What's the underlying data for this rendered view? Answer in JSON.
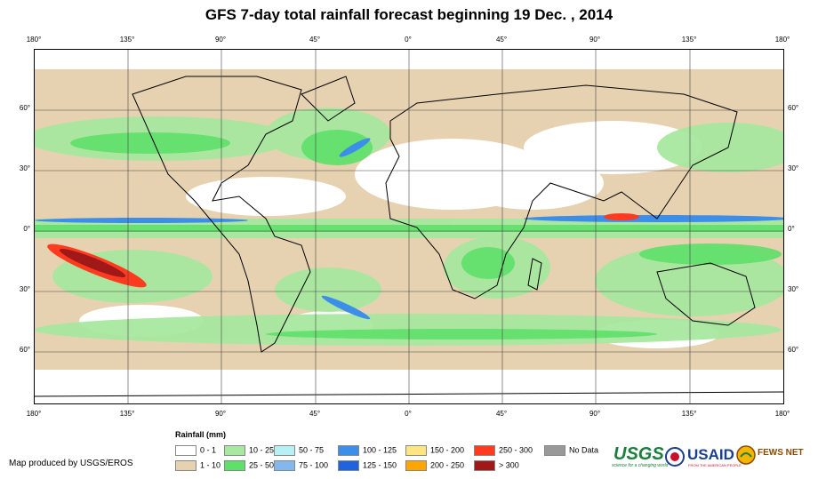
{
  "title": "GFS 7-day total rainfall forecast beginning 19 Dec. , 2014",
  "map": {
    "lon_labels": [
      "180°",
      "135°",
      "90°",
      "45°",
      "0°",
      "45°",
      "90°",
      "135°",
      "180°"
    ],
    "lat_labels": [
      "60°",
      "30°",
      "0°",
      "30°",
      "60°"
    ],
    "background_colors": {
      "dry": "#d9c3a3",
      "light": "#ffffff",
      "moderate": "#a8e8a0",
      "heavy": "#5fe06a",
      "intense": "#3d78d8",
      "extreme": "#b22222",
      "land_outline": "#000000"
    }
  },
  "legend": {
    "title": "Rainfall (mm)",
    "items": [
      {
        "label": "0 - 1",
        "color": "#ffffff"
      },
      {
        "label": "1 - 10",
        "color": "#e6d2b0"
      },
      {
        "label": "10 - 25",
        "color": "#a8e8a0"
      },
      {
        "label": "25 - 50",
        "color": "#5fe06a"
      },
      {
        "label": "50 - 75",
        "color": "#b7f0f5"
      },
      {
        "label": "75 - 100",
        "color": "#82b8ee"
      },
      {
        "label": "100 - 125",
        "color": "#3d8ee8"
      },
      {
        "label": "125 - 150",
        "color": "#1f63e0"
      },
      {
        "label": "150 - 200",
        "color": "#ffe680"
      },
      {
        "label": "200 - 250",
        "color": "#ffa500"
      },
      {
        "label": "250 - 300",
        "color": "#ff3b1f"
      },
      {
        "label": "> 300",
        "color": "#a01818"
      },
      {
        "label": "No Data",
        "color": "#999999"
      }
    ]
  },
  "credit": "Map produced by USGS/EROS",
  "logos": {
    "usgs": "USGS",
    "usgs_tagline": "science for a changing world",
    "usaid": "USAID",
    "usaid_tagline": "FROM THE AMERICAN PEOPLE",
    "fews": "FEWS NET"
  }
}
